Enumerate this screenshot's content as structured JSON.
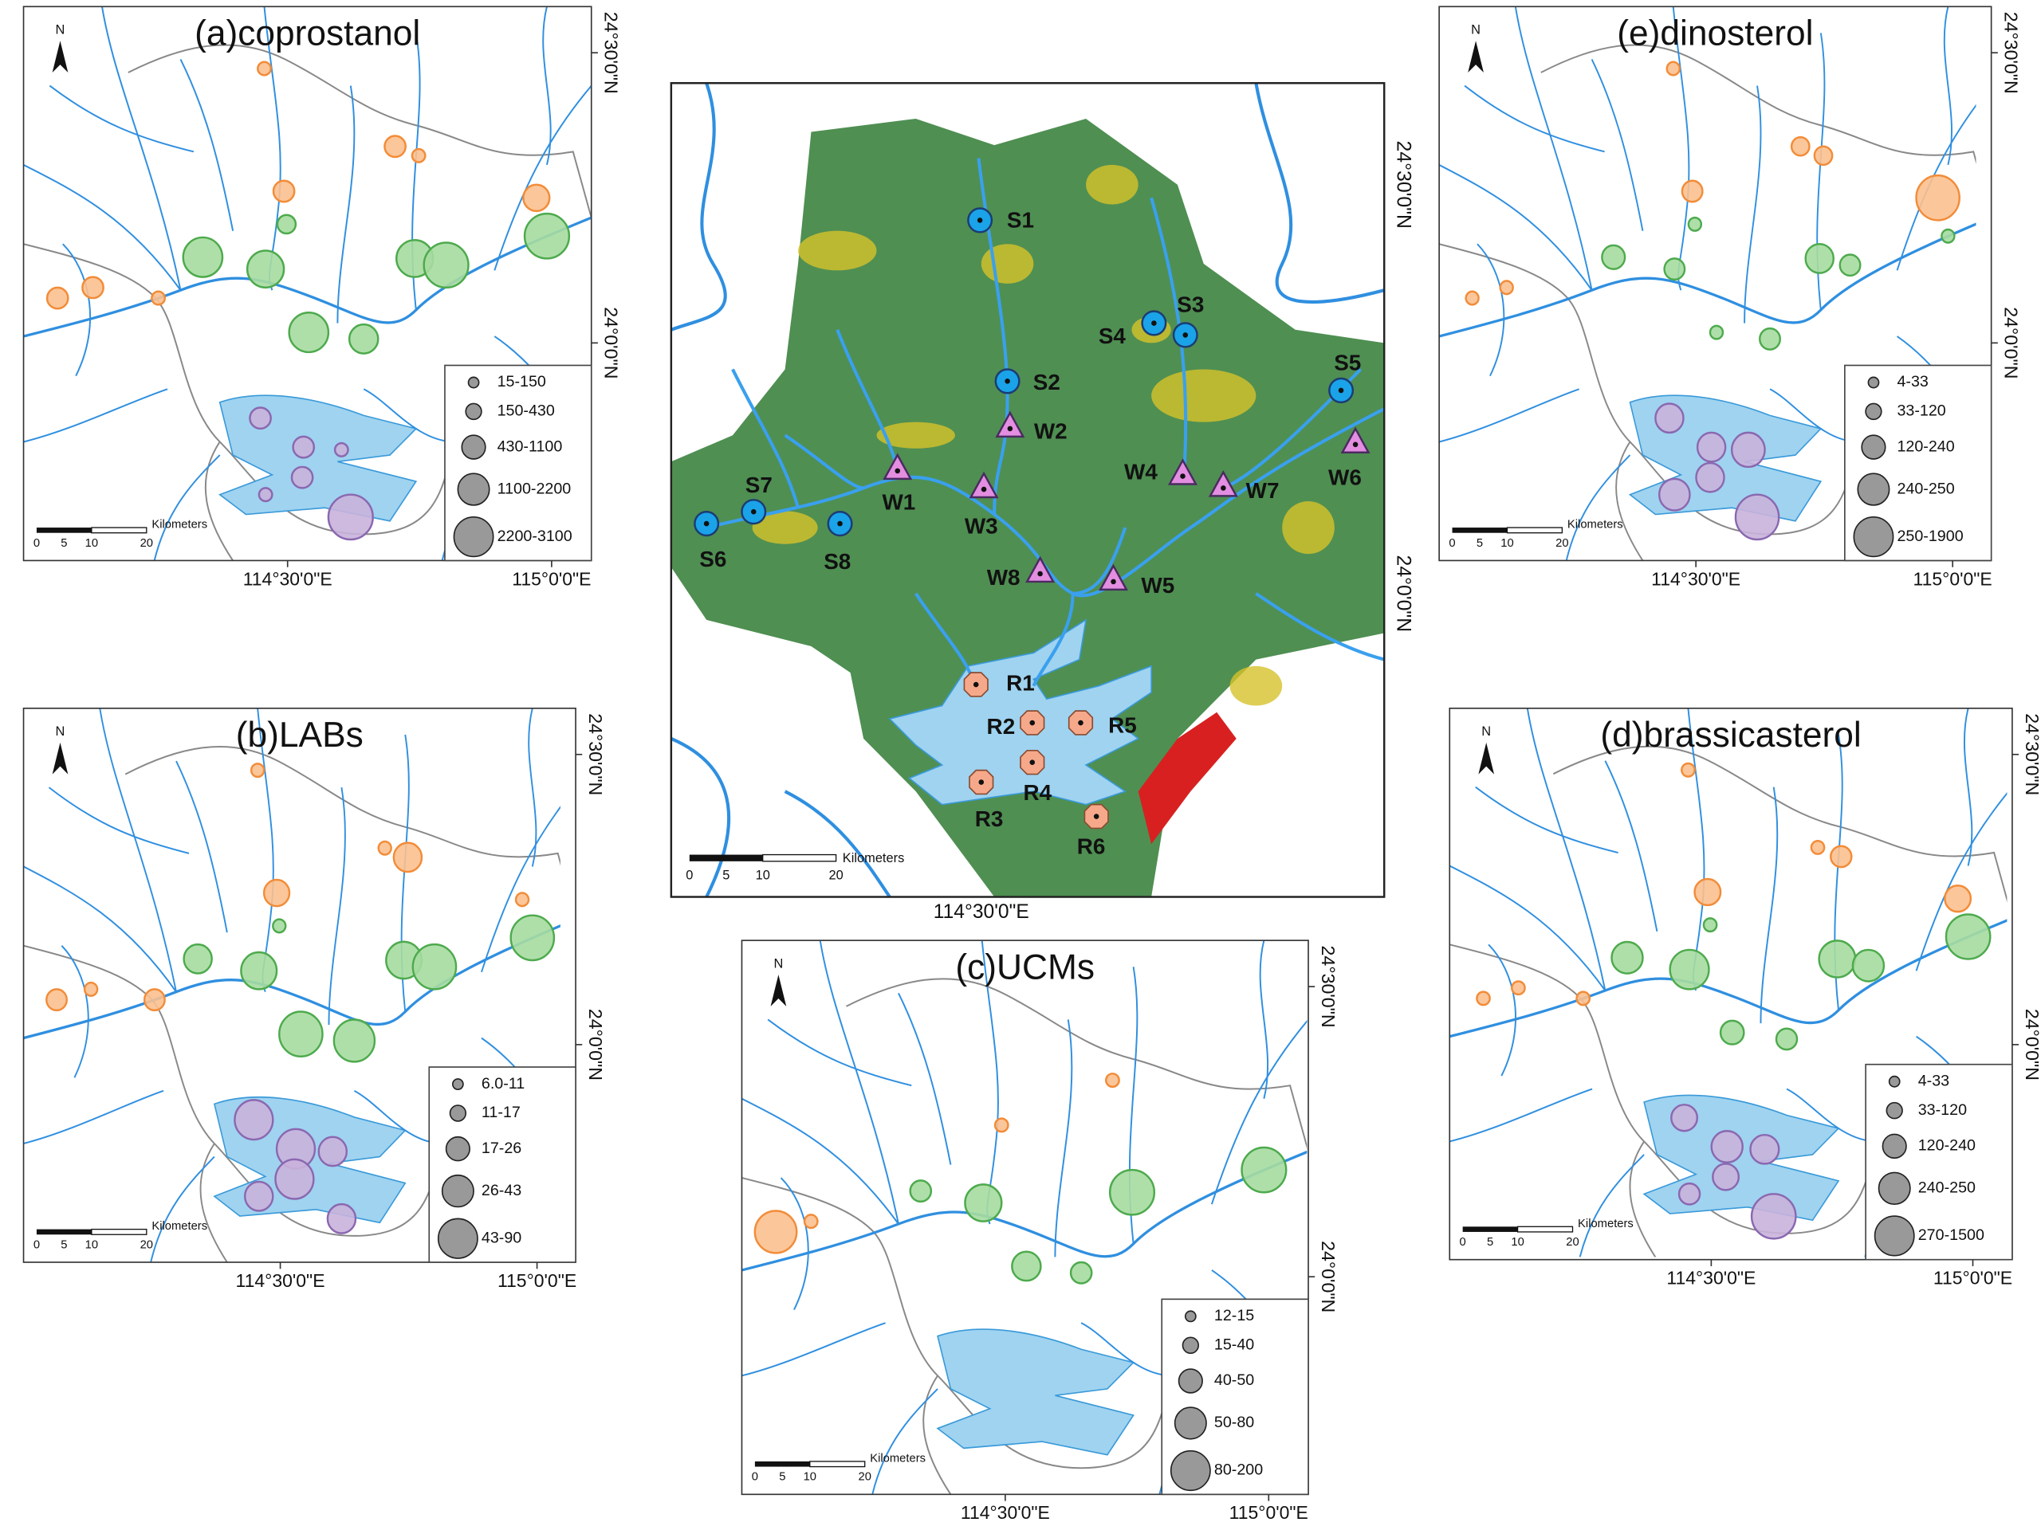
{
  "central_map": {
    "sites": [
      "S1",
      "S2",
      "S3",
      "S4",
      "S5",
      "S6",
      "S7",
      "S8",
      "W1",
      "W2",
      "W3",
      "W4",
      "W5",
      "W6",
      "W7",
      "W8",
      "R1",
      "R2",
      "R3",
      "R4",
      "R5",
      "R6"
    ],
    "scale": [
      "0",
      "5",
      "10",
      "20"
    ],
    "scale_unit": "Kilometers",
    "lon_labels": [
      "114°30'0\"E"
    ],
    "lat_labels": [
      "24°30'0\"N",
      "24°0'0\"N"
    ]
  },
  "panels": [
    {
      "title": "(a)coprostanol",
      "north": "N",
      "legend": [
        "15-150",
        "150-430",
        "430-1100",
        "1100-2200",
        "2200-3100"
      ],
      "scale": [
        "0",
        "5",
        "10",
        "20"
      ],
      "scale_unit": "Kilometers",
      "lon_labels": [
        "114°30'0\"E",
        "115°0'0\"E"
      ],
      "lat_labels": [
        "24°30'0\"N",
        "24°0'0\"N"
      ]
    },
    {
      "title": "(b)LABs",
      "north": "N",
      "legend": [
        "6.0-11",
        "11-17",
        "17-26",
        "26-43",
        "43-90"
      ],
      "scale": [
        "0",
        "5",
        "10",
        "20"
      ],
      "scale_unit": "Kilometers",
      "lon_labels": [
        "114°30'0\"E",
        "115°0'0\"E"
      ],
      "lat_labels": [
        "24°30'0\"N",
        "24°0'0\"N"
      ]
    },
    {
      "title": "(c)UCMs",
      "north": "N",
      "legend": [
        "12-15",
        "15-40",
        "40-50",
        "50-80",
        "80-200"
      ],
      "scale": [
        "0",
        "5",
        "10",
        "20"
      ],
      "scale_unit": "Kilometers",
      "lon_labels": [
        "114°30'0\"E",
        "115°0'0\"E"
      ],
      "lat_labels": [
        "24°30'0\"N",
        "24°0'0\"N"
      ]
    },
    {
      "title": "(d)brassicasterol",
      "north": "N",
      "legend": [
        "4-33",
        "33-120",
        "120-240",
        "240-250",
        "270-1500"
      ],
      "scale": [
        "0",
        "5",
        "10",
        "20"
      ],
      "scale_unit": "Kilometers",
      "lon_labels": [
        "114°30'0\"E",
        "115°0'0\"E"
      ],
      "lat_labels": [
        "24°30'0\"N",
        "24°0'0\"N"
      ]
    },
    {
      "title": "(e)dinosterol",
      "north": "N",
      "legend": [
        "4-33",
        "33-120",
        "120-240",
        "240-250",
        "250-1900"
      ],
      "scale": [
        "0",
        "5",
        "10",
        "20"
      ],
      "scale_unit": "Kilometers",
      "lon_labels": [
        "114°30'0\"E",
        "115°0'0\"E"
      ],
      "lat_labels": [
        "24°30'0\"N",
        "24°0'0\"N"
      ]
    }
  ]
}
